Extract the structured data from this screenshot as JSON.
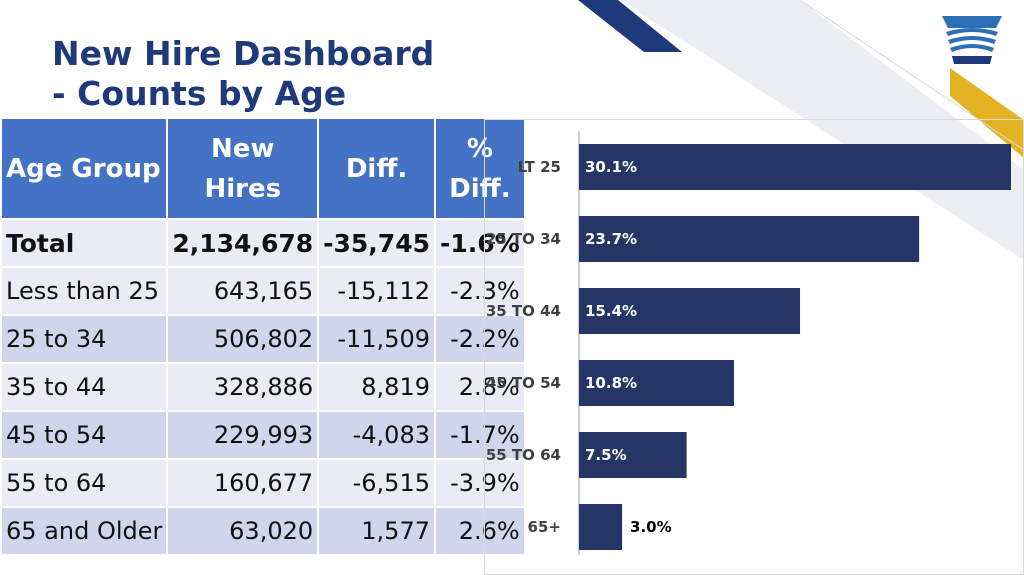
{
  "title": {
    "line1": "New Hire Dashboard",
    "line2": "- Counts by Age"
  },
  "table": {
    "headers": {
      "age_group": "Age Group",
      "new_hires_line1": "New",
      "new_hires_line2": "Hires",
      "diff": "Diff.",
      "pct_diff_line1": "%",
      "pct_diff_line2": "Diff."
    },
    "rows": [
      {
        "label": "Total",
        "new_hires": "2,134,678",
        "diff": "-35,745",
        "pct_diff": "-1.6%"
      },
      {
        "label": "Less than 25",
        "new_hires": "643,165",
        "diff": "-15,112",
        "pct_diff": "-2.3%"
      },
      {
        "label": "25 to 34",
        "new_hires": "506,802",
        "diff": "-11,509",
        "pct_diff": "-2.2%"
      },
      {
        "label": "35 to 44",
        "new_hires": "328,886",
        "diff": "8,819",
        "pct_diff": "2.8%"
      },
      {
        "label": "45 to 54",
        "new_hires": "229,993",
        "diff": "-4,083",
        "pct_diff": "-1.7%"
      },
      {
        "label": "55 to 64",
        "new_hires": "160,677",
        "diff": "-6,515",
        "pct_diff": "-3.9%"
      },
      {
        "label": "65 and Older",
        "new_hires": "63,020",
        "diff": "1,577",
        "pct_diff": "2.6%"
      }
    ]
  },
  "colors": {
    "title": "#1f3a7a",
    "table_header": "#4472c4",
    "row_dark": "#cfd5ea",
    "row_light": "#e9ebf5",
    "bar": "#253565",
    "accent_gold": "#e3b324"
  },
  "logo": {
    "icon": "keystone-logo-icon"
  },
  "chart_data": {
    "type": "bar",
    "orientation": "horizontal",
    "categories": [
      "LT 25",
      "25 TO 34",
      "35 TO 44",
      "45 TO 54",
      "55 TO 64",
      "65+"
    ],
    "values": [
      30.1,
      23.7,
      15.4,
      10.8,
      7.5,
      3.0
    ],
    "data_labels": [
      "30.1%",
      "23.7%",
      "15.4%",
      "10.8%",
      "7.5%",
      "3.0%"
    ],
    "value_unit": "%",
    "xlim": [
      0,
      30.1
    ],
    "grid": false,
    "legend": "none"
  }
}
